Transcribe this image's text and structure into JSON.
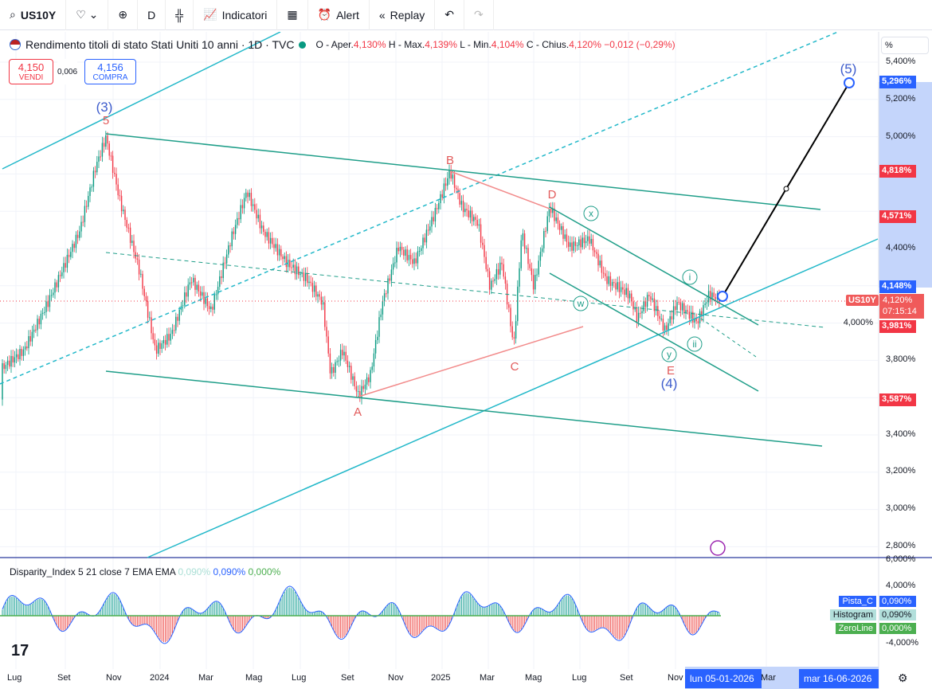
{
  "toolbar": {
    "symbol": "US10Y",
    "interval": "D",
    "indicators": "Indicatori",
    "alert": "Alert",
    "replay": "Replay"
  },
  "legend": {
    "title": "Rendimento titoli di stato Stati Uniti 10 anni · 1D · TVC",
    "o_label": "O - Aper.",
    "o": "4,130%",
    "h_label": "H - Max.",
    "h": "4,139%",
    "l_label": "L - Min.",
    "l": "4,104%",
    "c_label": "C - Chius.",
    "c": "4,120%",
    "chg": "−0,012 (−0,29%)"
  },
  "trade": {
    "sell": "4,150",
    "sell_label": "VENDI",
    "spread": "0,006",
    "buy": "4,156",
    "buy_label": "COMPRA"
  },
  "price_axis": {
    "unit": "%",
    "ticks": [
      "5,400%",
      "5,200%",
      "5,000%",
      "4,400%",
      "4,000%",
      "3,800%",
      "3,400%",
      "3,200%",
      "3,000%",
      "2,800%"
    ],
    "labels": {
      "p5296": "5,296%",
      "p4818": "4,818%",
      "p4571": "4,571%",
      "p4148": "4,148%",
      "last": "4,120%",
      "countdown": "07:15:14",
      "p3981": "3,981%",
      "p3587": "3,587%",
      "sym": "US10Y"
    }
  },
  "waves": {
    "w3": "(3)",
    "w5a": "5",
    "B": "B",
    "D": "D",
    "A": "A",
    "C": "C",
    "E": "E",
    "w4": "(4)",
    "w5": "(5)",
    "x": "x",
    "i": "i",
    "w": "w",
    "ii": "ii",
    "y": "y"
  },
  "indicator": {
    "name": "Disparity_Index 5 21 close 7 EMA EMA",
    "v1": "0,090%",
    "v2": "0,090%",
    "v3": "0,000%",
    "ticks": [
      "6,000%",
      "4,000%",
      "-4,000%"
    ],
    "pista": "Pista_C",
    "pista_v": "0,090%",
    "hist": "Histogram",
    "hist_v": "0,090%",
    "zero": "ZeroLine",
    "zero_v": "0,000%"
  },
  "time_axis": [
    "Lug",
    "Set",
    "Nov",
    "2024",
    "Mar",
    "Mag",
    "Lug",
    "Set",
    "Nov",
    "2025",
    "Mar",
    "Mag",
    "Lug",
    "Set",
    "Nov",
    "Mar"
  ],
  "time_highlight": {
    "start": "lun 05-01-2026",
    "end": "mar 16-06-2026"
  },
  "colors": {
    "up": "#089981",
    "down": "#f23645",
    "cyan": "#22b8c9",
    "green": "#1f9e89",
    "blue": "#2962ff"
  }
}
